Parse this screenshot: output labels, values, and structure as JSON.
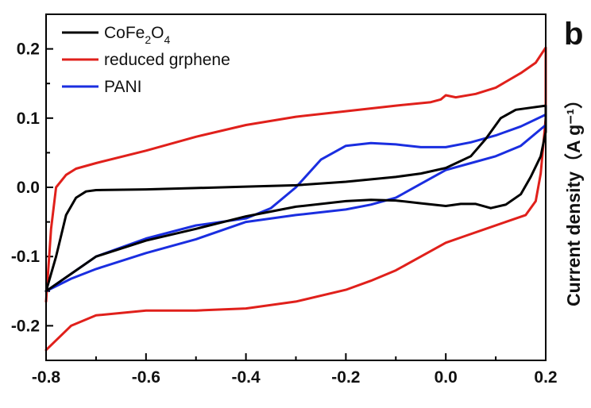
{
  "panel_label": "b",
  "chart_data": {
    "type": "line",
    "title": "",
    "xlabel": "",
    "ylabel": "Current density（A g⁻¹）",
    "xlim": [
      -0.8,
      0.2
    ],
    "ylim": [
      -0.25,
      0.25
    ],
    "x_ticks": [
      "-0.8",
      "-0.6",
      "-0.4",
      "-0.2",
      "0.0",
      "0.2"
    ],
    "y_ticks": [
      "-0.2",
      "-0.1",
      "0.0",
      "0.1",
      "0.2"
    ],
    "grid": false,
    "legend_position": "top-left",
    "series": [
      {
        "name": "CoFe2O4",
        "legend_parts": {
          "a": "CoFe",
          "b": "2",
          "c": "O",
          "d": "4"
        },
        "color": "#000000",
        "points": [
          [
            -0.8,
            -0.15
          ],
          [
            -0.78,
            -0.1
          ],
          [
            -0.76,
            -0.04
          ],
          [
            -0.74,
            -0.015
          ],
          [
            -0.72,
            -0.006
          ],
          [
            -0.7,
            -0.004
          ],
          [
            -0.6,
            -0.003
          ],
          [
            -0.5,
            -0.001
          ],
          [
            -0.4,
            0.001
          ],
          [
            -0.3,
            0.003
          ],
          [
            -0.2,
            0.008
          ],
          [
            -0.1,
            0.015
          ],
          [
            -0.05,
            0.02
          ],
          [
            0.0,
            0.028
          ],
          [
            0.05,
            0.045
          ],
          [
            0.08,
            0.07
          ],
          [
            0.11,
            0.1
          ],
          [
            0.14,
            0.112
          ],
          [
            0.17,
            0.115
          ],
          [
            0.2,
            0.118
          ],
          [
            0.2,
            0.08
          ],
          [
            0.19,
            0.045
          ],
          [
            0.17,
            0.015
          ],
          [
            0.15,
            -0.01
          ],
          [
            0.12,
            -0.025
          ],
          [
            0.09,
            -0.03
          ],
          [
            0.06,
            -0.024
          ],
          [
            0.03,
            -0.024
          ],
          [
            0.0,
            -0.027
          ],
          [
            -0.05,
            -0.023
          ],
          [
            -0.1,
            -0.019
          ],
          [
            -0.15,
            -0.018
          ],
          [
            -0.2,
            -0.02
          ],
          [
            -0.3,
            -0.028
          ],
          [
            -0.4,
            -0.042
          ],
          [
            -0.5,
            -0.06
          ],
          [
            -0.6,
            -0.077
          ],
          [
            -0.7,
            -0.1
          ],
          [
            -0.75,
            -0.125
          ],
          [
            -0.8,
            -0.15
          ]
        ]
      },
      {
        "name": "reduced grphene",
        "color": "#e0201b",
        "points": [
          [
            -0.8,
            -0.165
          ],
          [
            -0.79,
            -0.06
          ],
          [
            -0.78,
            0.0
          ],
          [
            -0.76,
            0.018
          ],
          [
            -0.74,
            0.027
          ],
          [
            -0.7,
            0.035
          ],
          [
            -0.6,
            0.053
          ],
          [
            -0.5,
            0.073
          ],
          [
            -0.4,
            0.09
          ],
          [
            -0.3,
            0.102
          ],
          [
            -0.2,
            0.11
          ],
          [
            -0.1,
            0.118
          ],
          [
            -0.03,
            0.123
          ],
          [
            -0.01,
            0.127
          ],
          [
            0.0,
            0.133
          ],
          [
            0.02,
            0.13
          ],
          [
            0.06,
            0.135
          ],
          [
            0.1,
            0.144
          ],
          [
            0.15,
            0.165
          ],
          [
            0.18,
            0.18
          ],
          [
            0.2,
            0.202
          ],
          [
            0.2,
            0.1
          ],
          [
            0.19,
            0.02
          ],
          [
            0.18,
            -0.02
          ],
          [
            0.16,
            -0.04
          ],
          [
            0.12,
            -0.05
          ],
          [
            0.08,
            -0.06
          ],
          [
            0.04,
            -0.07
          ],
          [
            0.0,
            -0.08
          ],
          [
            -0.05,
            -0.1
          ],
          [
            -0.1,
            -0.12
          ],
          [
            -0.15,
            -0.135
          ],
          [
            -0.2,
            -0.148
          ],
          [
            -0.3,
            -0.165
          ],
          [
            -0.4,
            -0.175
          ],
          [
            -0.5,
            -0.178
          ],
          [
            -0.6,
            -0.178
          ],
          [
            -0.7,
            -0.185
          ],
          [
            -0.75,
            -0.2
          ],
          [
            -0.8,
            -0.235
          ]
        ]
      },
      {
        "name": "PANI",
        "color": "#1a2ee0",
        "points": [
          [
            -0.8,
            -0.15
          ],
          [
            -0.75,
            -0.125
          ],
          [
            -0.7,
            -0.1
          ],
          [
            -0.6,
            -0.074
          ],
          [
            -0.5,
            -0.055
          ],
          [
            -0.4,
            -0.045
          ],
          [
            -0.35,
            -0.03
          ],
          [
            -0.3,
            0.0
          ],
          [
            -0.25,
            0.04
          ],
          [
            -0.2,
            0.06
          ],
          [
            -0.15,
            0.064
          ],
          [
            -0.1,
            0.062
          ],
          [
            -0.05,
            0.058
          ],
          [
            0.0,
            0.058
          ],
          [
            0.05,
            0.065
          ],
          [
            0.1,
            0.075
          ],
          [
            0.15,
            0.088
          ],
          [
            0.2,
            0.105
          ],
          [
            0.2,
            0.09
          ],
          [
            0.15,
            0.06
          ],
          [
            0.1,
            0.045
          ],
          [
            0.05,
            0.035
          ],
          [
            0.0,
            0.025
          ],
          [
            -0.05,
            0.005
          ],
          [
            -0.1,
            -0.015
          ],
          [
            -0.15,
            -0.025
          ],
          [
            -0.2,
            -0.032
          ],
          [
            -0.3,
            -0.04
          ],
          [
            -0.4,
            -0.05
          ],
          [
            -0.5,
            -0.075
          ],
          [
            -0.6,
            -0.095
          ],
          [
            -0.7,
            -0.118
          ],
          [
            -0.75,
            -0.132
          ],
          [
            -0.8,
            -0.15
          ]
        ]
      }
    ]
  }
}
